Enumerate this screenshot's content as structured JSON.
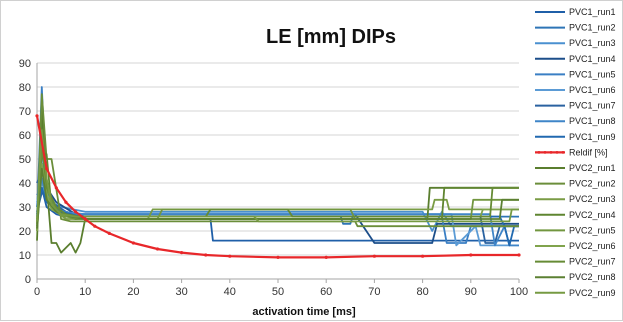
{
  "chart_data": {
    "type": "line",
    "title": "LE [mm]   DIPs",
    "xlabel": "activation time [ms]",
    "ylabel": "",
    "xlim": [
      0,
      100
    ],
    "ylim": [
      0,
      90
    ],
    "x_ticks": [
      0,
      10,
      20,
      30,
      40,
      50,
      60,
      70,
      80,
      90,
      100
    ],
    "y_ticks": [
      0,
      10,
      20,
      30,
      40,
      50,
      60,
      70,
      80,
      90
    ],
    "grid": "horizontal",
    "legend_position": "right",
    "series": [
      {
        "name": "PVC1_run1",
        "color": "#1f5fa8",
        "x": [
          0,
          1,
          2,
          4,
          6,
          8,
          10,
          36,
          36.5,
          66,
          66.5,
          100
        ],
        "y": [
          35,
          38,
          30,
          27,
          26,
          26,
          25,
          25,
          16,
          16,
          16,
          16
        ]
      },
      {
        "name": "PVC1_run2",
        "color": "#2e75b6",
        "x": [
          0,
          1,
          2,
          3,
          5,
          8,
          12,
          63,
          63.5,
          65,
          65.5,
          100
        ],
        "y": [
          30,
          55,
          35,
          30,
          28,
          26,
          26,
          26,
          23,
          23,
          26,
          26
        ]
      },
      {
        "name": "PVC1_run3",
        "color": "#4a90d0",
        "x": [
          0,
          1,
          2,
          5,
          10,
          15,
          40,
          80,
          82,
          84,
          86,
          100
        ],
        "y": [
          28,
          37,
          33,
          30,
          28,
          28,
          28,
          28,
          20,
          28,
          22,
          22
        ]
      },
      {
        "name": "PVC1_run4",
        "color": "#1c4e8a",
        "x": [
          0,
          1,
          2,
          4,
          8,
          14,
          60,
          66,
          70,
          82,
          83,
          100
        ],
        "y": [
          40,
          45,
          38,
          32,
          27,
          27,
          27,
          27,
          15,
          15,
          23,
          23
        ]
      },
      {
        "name": "PVC1_run5",
        "color": "#3a7fc4",
        "x": [
          0,
          1,
          2,
          4,
          8,
          35,
          36,
          84,
          85,
          89,
          90,
          100
        ],
        "y": [
          26,
          80,
          36,
          30,
          26,
          26,
          26,
          26,
          15,
          15,
          22,
          22
        ]
      },
      {
        "name": "PVC1_run6",
        "color": "#5b9bd5",
        "x": [
          0,
          1,
          2,
          5,
          10,
          30,
          60,
          86,
          87,
          91,
          92,
          100
        ],
        "y": [
          32,
          40,
          35,
          28,
          27,
          27,
          27,
          27,
          14,
          22,
          14,
          14
        ]
      },
      {
        "name": "PVC1_run7",
        "color": "#2a62a0",
        "x": [
          0,
          1,
          3,
          6,
          10,
          50,
          85,
          92,
          93,
          95,
          96,
          100
        ],
        "y": [
          28,
          36,
          32,
          28,
          26,
          26,
          26,
          26,
          15,
          15,
          22,
          22
        ]
      },
      {
        "name": "PVC1_run8",
        "color": "#3f85c8",
        "x": [
          0,
          1,
          2,
          4,
          8,
          20,
          70,
          94,
          95,
          97,
          98,
          100
        ],
        "y": [
          30,
          42,
          33,
          29,
          27,
          27,
          27,
          27,
          14,
          22,
          14,
          14
        ]
      },
      {
        "name": "PVC1_run9",
        "color": "#2169b0",
        "x": [
          0,
          1,
          2,
          5,
          9,
          30,
          80,
          96,
          97,
          98,
          99,
          100
        ],
        "y": [
          27,
          38,
          32,
          28,
          26,
          26,
          26,
          26,
          22,
          14,
          22,
          22
        ]
      },
      {
        "name": "Reldif [%]",
        "color": "#e8272a",
        "x": [
          0,
          2,
          4,
          6,
          8,
          10,
          12,
          15,
          20,
          25,
          30,
          35,
          40,
          50,
          60,
          70,
          80,
          90,
          100
        ],
        "y": [
          68,
          46,
          38,
          32,
          28,
          25,
          22,
          19,
          15,
          12.5,
          11,
          10,
          9.5,
          9,
          9,
          9.5,
          9.5,
          10,
          10
        ]
      },
      {
        "name": "PVC2_run1",
        "color": "#5a7e2e",
        "x": [
          0,
          1,
          2,
          3,
          4,
          5,
          7,
          8,
          9,
          10,
          30,
          60,
          81,
          81.5,
          100
        ],
        "y": [
          16,
          70,
          40,
          15,
          15,
          11,
          15,
          11,
          15,
          25,
          25,
          25,
          25,
          38,
          38
        ]
      },
      {
        "name": "PVC2_run2",
        "color": "#6b8e3a",
        "x": [
          0,
          1,
          2,
          3,
          5,
          7,
          10,
          22,
          40,
          66,
          66.5,
          100
        ],
        "y": [
          20,
          77,
          50,
          50,
          25,
          24,
          24,
          24,
          24,
          24,
          22,
          22
        ]
      },
      {
        "name": "PVC2_run3",
        "color": "#7a9c45",
        "x": [
          0,
          1,
          2,
          4,
          6,
          8,
          12,
          23,
          24,
          40,
          82,
          82.5,
          85,
          85.5,
          100
        ],
        "y": [
          25,
          60,
          35,
          28,
          25,
          25,
          25,
          25,
          29,
          29,
          29,
          33,
          33,
          29,
          29
        ]
      },
      {
        "name": "PVC2_run4",
        "color": "#5f8530",
        "x": [
          0,
          1,
          2,
          3,
          5,
          8,
          12,
          40,
          60,
          84,
          84.5,
          100
        ],
        "y": [
          22,
          52,
          52,
          30,
          27,
          25,
          25,
          25,
          25,
          25,
          38,
          38
        ]
      },
      {
        "name": "PVC2_run5",
        "color": "#72963f",
        "x": [
          0,
          1,
          2,
          4,
          6,
          9,
          14,
          25,
          26,
          50,
          65,
          66,
          90,
          90.5,
          100
        ],
        "y": [
          24,
          55,
          40,
          28,
          26,
          25,
          25,
          25,
          29,
          29,
          29,
          25,
          25,
          33,
          33
        ]
      },
      {
        "name": "PVC2_run6",
        "color": "#80a34c",
        "x": [
          0,
          1,
          2,
          3,
          5,
          7,
          10,
          30,
          60,
          92,
          92.5,
          100
        ],
        "y": [
          20,
          48,
          36,
          29,
          27,
          26,
          26,
          26,
          26,
          26,
          29,
          29
        ]
      },
      {
        "name": "PVC2_run7",
        "color": "#668b35",
        "x": [
          0,
          1,
          2,
          4,
          6,
          9,
          13,
          35,
          36,
          52,
          53,
          94,
          94.5,
          100
        ],
        "y": [
          23,
          58,
          38,
          30,
          27,
          26,
          26,
          26,
          29,
          29,
          26,
          26,
          38,
          38
        ]
      },
      {
        "name": "PVC2_run8",
        "color": "#5c8032",
        "x": [
          0,
          1,
          2,
          4,
          7,
          10,
          40,
          70,
          96,
          96.5,
          100
        ],
        "y": [
          21,
          46,
          33,
          28,
          26,
          25,
          25,
          25,
          25,
          33,
          33
        ]
      },
      {
        "name": "PVC2_run9",
        "color": "#769a42",
        "x": [
          0,
          1,
          2,
          3,
          5,
          8,
          12,
          45,
          46,
          75,
          98,
          98.5,
          100
        ],
        "y": [
          24,
          62,
          42,
          31,
          27,
          26,
          26,
          26,
          24,
          24,
          24,
          29,
          29
        ]
      }
    ]
  }
}
